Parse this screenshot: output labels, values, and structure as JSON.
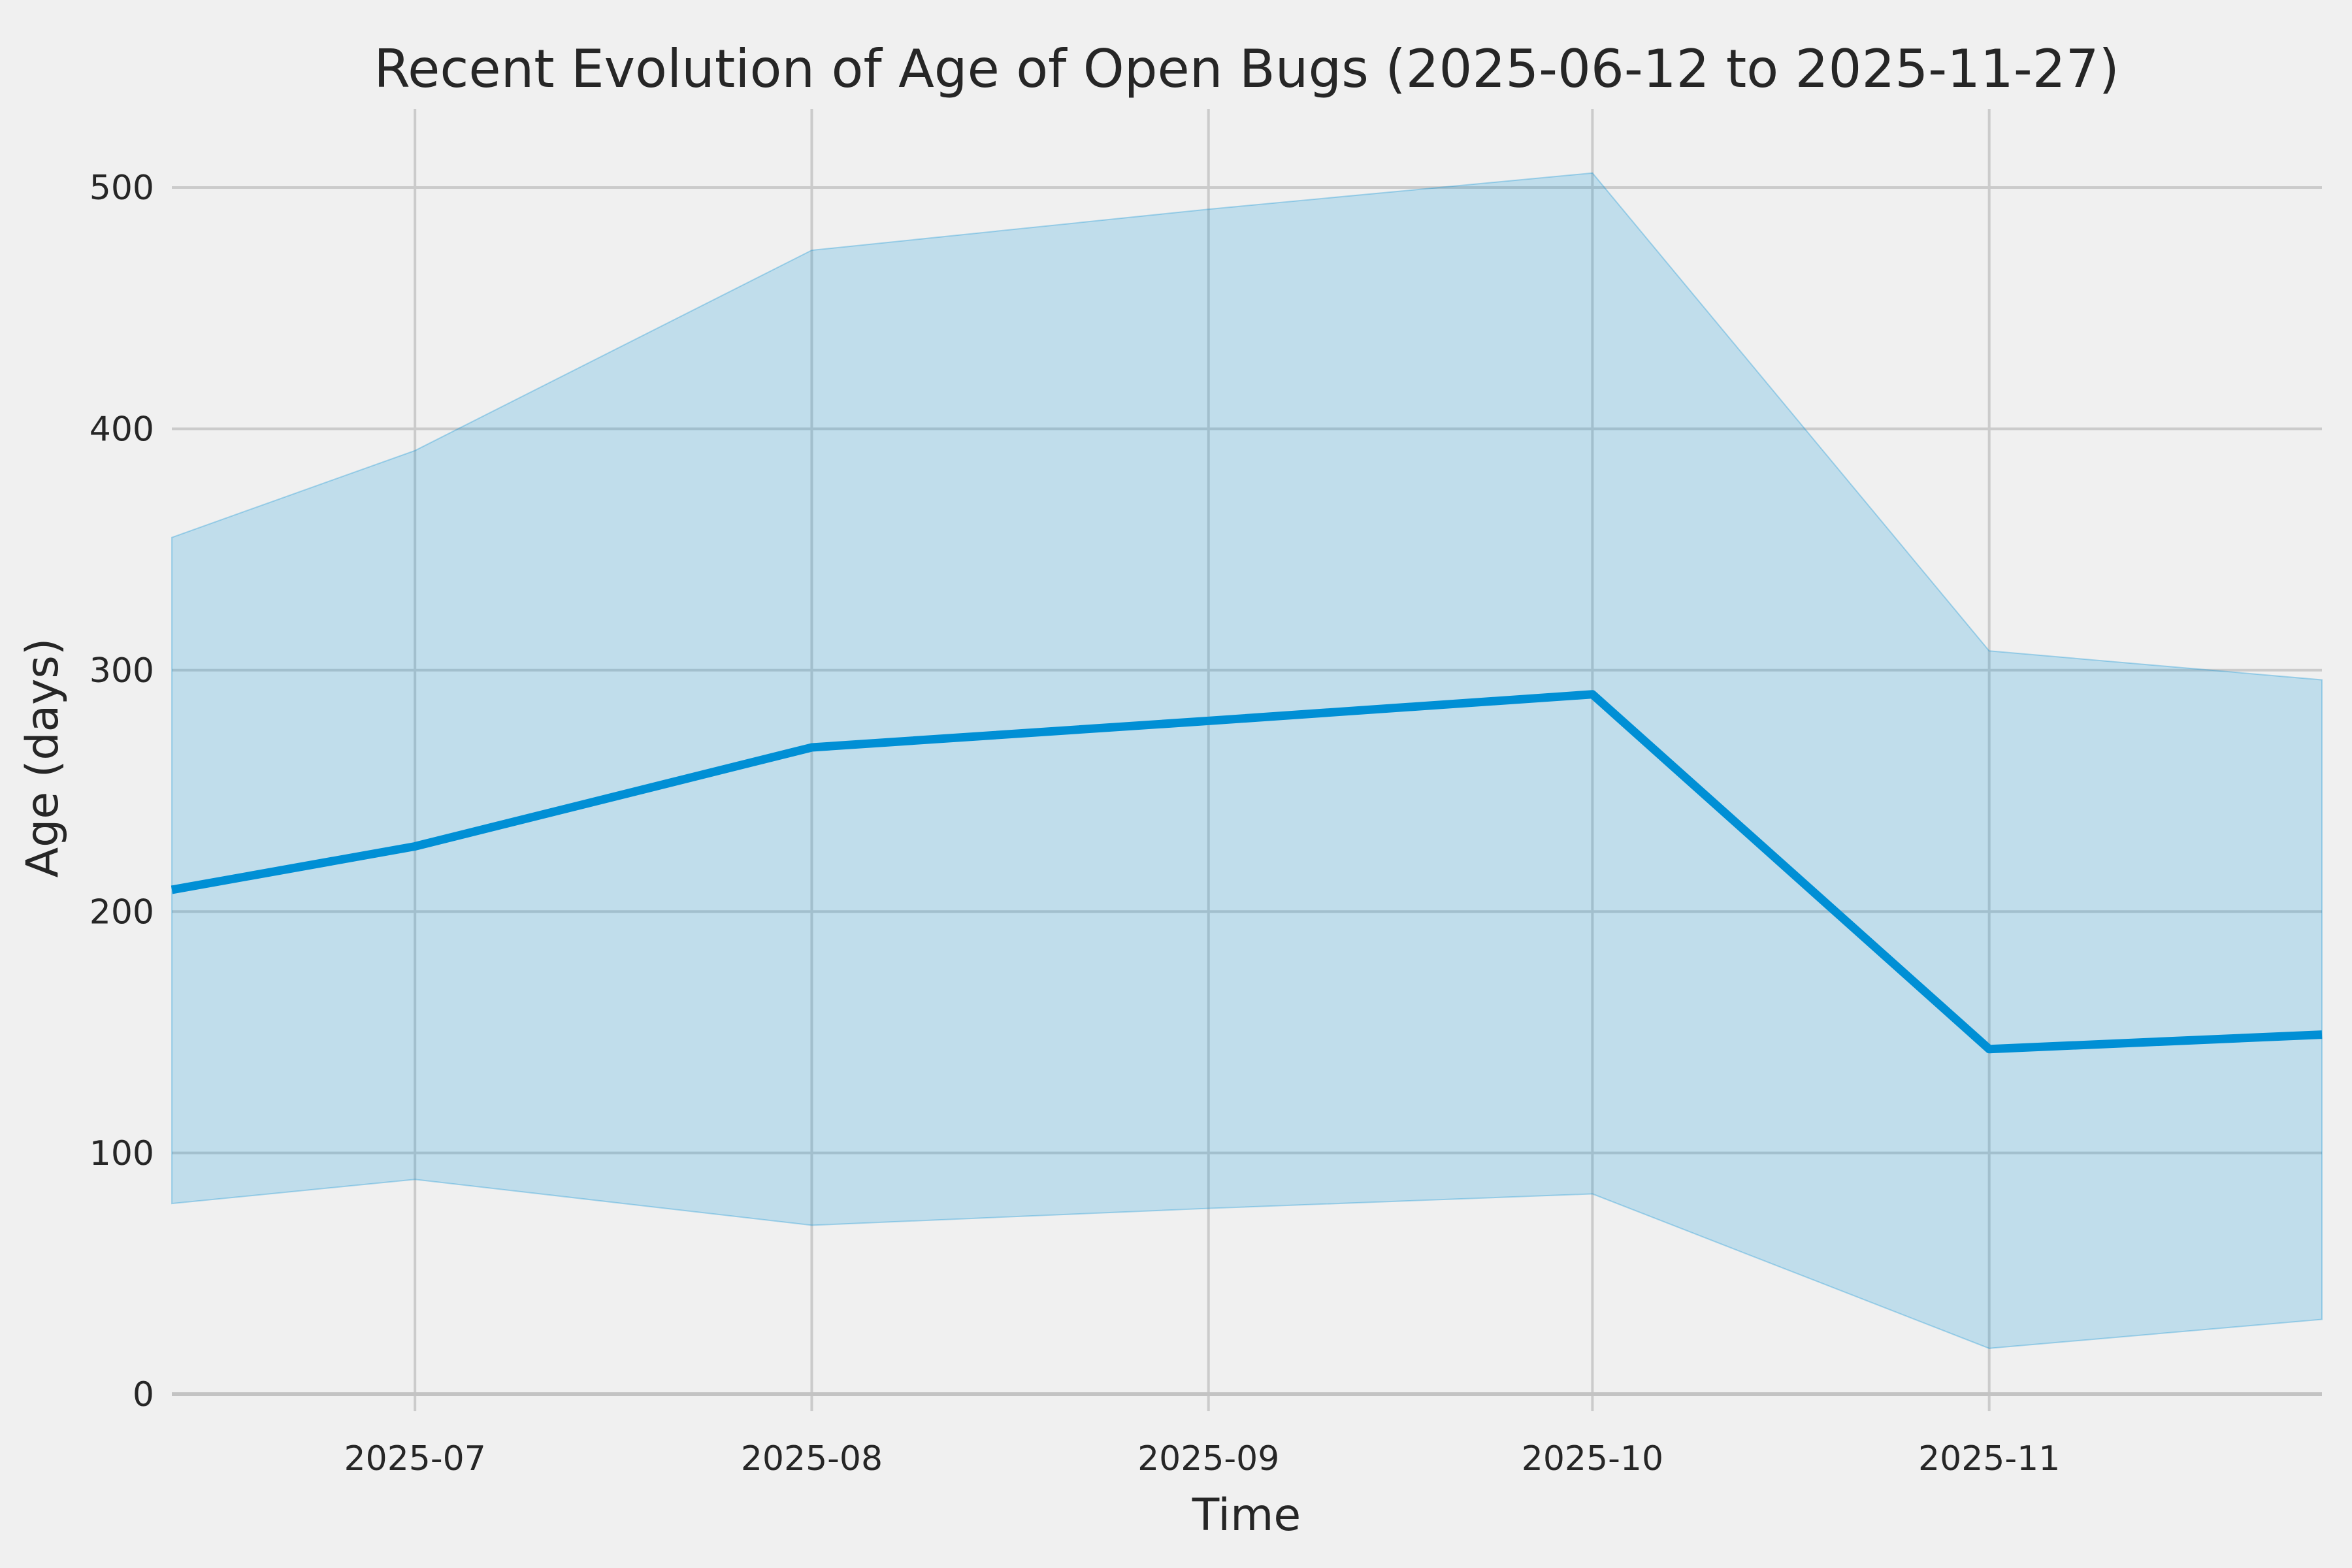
{
  "colors": {
    "background": "#f0f0f0",
    "grid": "#cbcbcb",
    "zero_line": "#c3c3c3",
    "line": "#008fd5",
    "band_fill": "rgba(0,143,213,0.20)",
    "band_edge": "rgba(0,143,213,0.30)",
    "text": "#262626"
  },
  "chart_data": {
    "type": "line",
    "title": "Recent Evolution of Age of Open Bugs (2025-06-12 to 2025-11-27)",
    "xlabel": "Time",
    "ylabel": "Age (days)",
    "date_range_start": "2025-06-12",
    "date_range_end": "2025-11-27",
    "x_dates": [
      "2025-06-12",
      "2025-07-01",
      "2025-08-01",
      "2025-09-01",
      "2025-10-01",
      "2025-11-01",
      "2025-11-27"
    ],
    "x_days": [
      0,
      19,
      50,
      81,
      111,
      142,
      168
    ],
    "series": [
      {
        "name": "median-age",
        "role": "line",
        "values": [
          209,
          227,
          268,
          279,
          290,
          143,
          149
        ]
      },
      {
        "name": "band-upper",
        "role": "band-top",
        "values": [
          355,
          391,
          474,
          491,
          506,
          308,
          296
        ]
      },
      {
        "name": "band-lower",
        "role": "band-bottom",
        "values": [
          79,
          89,
          70,
          77,
          83,
          19,
          31
        ]
      }
    ],
    "x_ticks": [
      {
        "day": 19,
        "label": "2025-07"
      },
      {
        "day": 50,
        "label": "2025-08"
      },
      {
        "day": 81,
        "label": "2025-09"
      },
      {
        "day": 111,
        "label": "2025-10"
      },
      {
        "day": 142,
        "label": "2025-11"
      }
    ],
    "y_ticks": [
      0,
      100,
      200,
      300,
      400,
      500
    ],
    "ylim": [
      -5,
      531
    ],
    "xlim_days": [
      0,
      168
    ],
    "grid": true,
    "legend": false,
    "band_meaning": "min-max envelope around median line"
  }
}
